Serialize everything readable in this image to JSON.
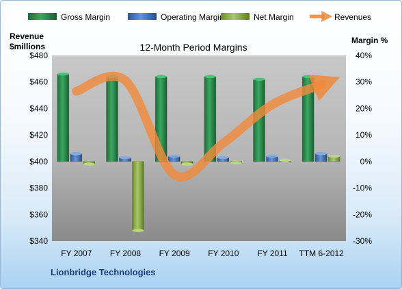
{
  "chart_data": {
    "type": "bar",
    "title": "12-Month Period Margins",
    "left_axis_title_line1": "Revenue",
    "left_axis_title_line2": "$millions",
    "right_axis_title": "Margin %",
    "company": "Lionbridge Technologies",
    "categories": [
      "FY 2007",
      "FY 2008",
      "FY 2009",
      "FY 2010",
      "FY 2011",
      "TTM 6-2012"
    ],
    "left_ylim": [
      340,
      480
    ],
    "left_ticks": [
      "$340",
      "$360",
      "$380",
      "$400",
      "$420",
      "$440",
      "$460",
      "$480"
    ],
    "right_ylim": [
      -30,
      40
    ],
    "right_ticks": [
      "-30%",
      "-20%",
      "-10%",
      "0%",
      "10%",
      "20%",
      "30%",
      "40%"
    ],
    "series": [
      {
        "name": "Gross Margin",
        "axis": "right",
        "kind": "bar",
        "color": "#2e8b4e",
        "values": [
          33,
          32,
          32,
          32,
          31,
          32
        ]
      },
      {
        "name": "Operating Margin",
        "axis": "right",
        "kind": "bar",
        "color": "#4a72b5",
        "values": [
          3,
          1.5,
          2,
          1.5,
          2,
          3
        ]
      },
      {
        "name": "Net Margin",
        "axis": "right",
        "kind": "bar",
        "color": "#8fb04c",
        "values": [
          -1,
          -26,
          -1,
          -0.5,
          0.5,
          2
        ]
      },
      {
        "name": "Revenues",
        "axis": "left",
        "kind": "line",
        "color": "#f08a3c",
        "values": [
          453,
          461,
          390,
          414,
          443,
          458
        ]
      }
    ],
    "legend_position": "top",
    "grid": false
  }
}
